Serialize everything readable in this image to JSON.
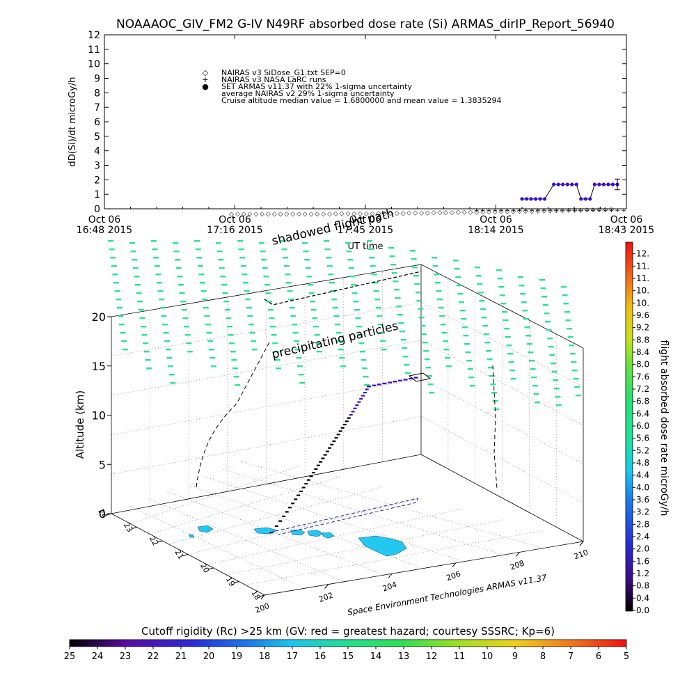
{
  "title": "NOAAAOC_GIV_FM2 G-IV   N49RF  absorbed dose rate (Si) ARMAS_dirIP_Report_56940",
  "top_chart": {
    "ylabel": "dD(Si)/dt microGy/h",
    "xlabel": "UT time",
    "y_ticks": [
      "0",
      "1",
      "2",
      "3",
      "4",
      "5",
      "6",
      "7",
      "8",
      "9",
      "10",
      "11",
      "12"
    ],
    "x_ticks": [
      {
        "line1": "Oct 06",
        "line2": "16:48 2015"
      },
      {
        "line1": "Oct 06",
        "line2": "17:16 2015"
      },
      {
        "line1": "Oct 06",
        "line2": "17:45 2015"
      },
      {
        "line1": "Oct 06",
        "line2": "18:14 2015"
      },
      {
        "line1": "Oct 06",
        "line2": "18:43 2015"
      }
    ],
    "legend": [
      {
        "symbol": "◇",
        "text": "NAIRAS v3 SiDose_G1.txt SEP=0"
      },
      {
        "symbol": "+",
        "text": "NAIRAS v3 NASA LaRC runs"
      },
      {
        "symbol": "●",
        "text": "SET ARMAS v11.37 with 22% 1-sigma uncertainty"
      },
      {
        "symbol": "",
        "text": "average NAIRAS v2 29% 1-sigma uncertainty"
      },
      {
        "symbol": "",
        "text": "Cruise altitude median value = 1.6800000 and mean value = 1.3835294"
      }
    ]
  },
  "chart_data": [
    {
      "type": "scatter",
      "title": "NOAAAOC_GIV_FM2 G-IV   N49RF  absorbed dose rate (Si) ARMAS_dirIP_Report_56940",
      "xlabel": "UT time",
      "ylabel": "dD(Si)/dt microGy/h",
      "ylim": [
        0,
        12
      ],
      "xlim": [
        "16:48",
        "18:43"
      ],
      "series": [
        {
          "name": "SET ARMAS v11.37 with 22% 1-sigma uncertainty",
          "color": "#3a0fd0",
          "x": [
            "18:20",
            "18:21",
            "18:22",
            "18:23",
            "18:24",
            "18:25",
            "18:27",
            "18:28",
            "18:29",
            "18:30",
            "18:31",
            "18:32",
            "18:33",
            "18:34",
            "18:35",
            "18:36",
            "18:37",
            "18:38",
            "18:39",
            "18:40",
            "18:41"
          ],
          "y": [
            0.68,
            0.68,
            0.68,
            0.68,
            0.68,
            0.68,
            1.68,
            1.68,
            1.68,
            1.68,
            1.68,
            1.68,
            0.68,
            0.68,
            0.68,
            1.68,
            1.68,
            1.68,
            1.68,
            1.68,
            1.68
          ]
        },
        {
          "name": "NAIRAS v3 SiDose_G1.txt SEP=0",
          "color": "#000000",
          "x_range": [
            "17:16",
            "18:41"
          ],
          "y_range": [
            -0.3,
            0.05
          ]
        },
        {
          "name": "NAIRAS v3 NASA LaRC runs",
          "color": "#000000",
          "x_range": [
            "18:10",
            "18:43"
          ],
          "y_constant": -0.05
        }
      ]
    },
    {
      "type": "scatter",
      "title": "",
      "zlabel": "Altitude (km)",
      "zlim": [
        0,
        20
      ],
      "z_ticks": [
        0,
        5,
        10,
        15,
        20
      ],
      "lon_ticks": [
        200,
        202,
        204,
        206,
        208,
        210
      ],
      "lat_ticks": [
        18,
        19,
        20,
        21,
        22,
        23,
        24
      ],
      "colorbar_label": "flight absorbed dose rate microGy/h",
      "colorbar_ticks": [
        "0.0",
        "0.4",
        "0.8",
        "1.2",
        "1.6",
        "2.0",
        "2.4",
        "2.8",
        "3.2",
        "3.6",
        "4.0",
        "4.4",
        "4.8",
        "5.2",
        "5.6",
        "6.0",
        "6.4",
        "6.8",
        "7.2",
        "7.6",
        "8.0",
        "8.4",
        "8.8",
        "9.2",
        "9.6",
        "10.",
        "10.",
        "11.",
        "11.",
        "12."
      ],
      "annotations": [
        "shadowed flight path",
        "precipitating particles"
      ],
      "credit": "Space Environment Technologies ARMAS v11.37"
    }
  ],
  "cutoff_bar": {
    "label": "Cutoff rigidity (Rc) >25 km (GV: red = greatest hazard; courtesy SSSRC; Kp=6)",
    "ticks": [
      "25",
      "24",
      "23",
      "22",
      "21",
      "20",
      "19",
      "18",
      "17",
      "16",
      "15",
      "14",
      "13",
      "12",
      "11",
      "10",
      "9",
      "8",
      "7",
      "6",
      "5"
    ]
  },
  "colors": {
    "armas": "#3a0fd0",
    "green_markers": "#23e88a",
    "islands": "#22c8f0"
  }
}
